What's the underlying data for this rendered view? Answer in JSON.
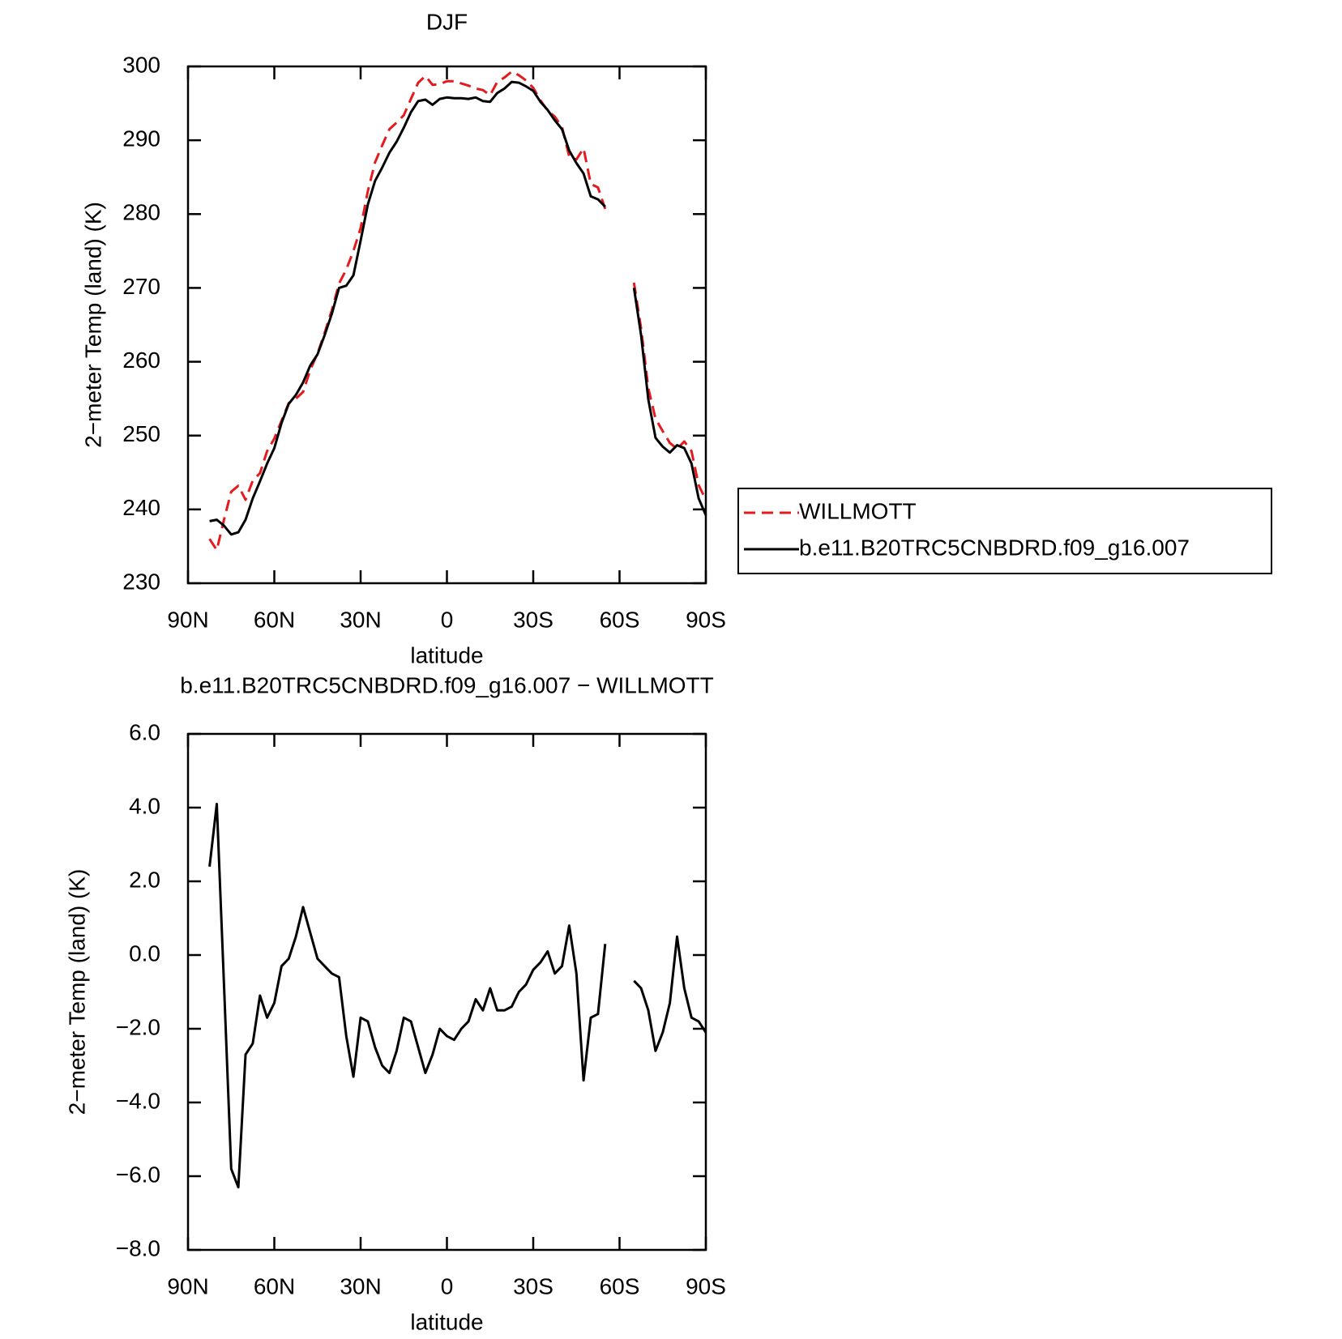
{
  "chart_data": [
    {
      "type": "line",
      "title": "DJF",
      "x_label": "latitude",
      "y_label": "2−meter Temp (land) (K)",
      "x": [
        82.5,
        80,
        77.5,
        75,
        72.5,
        70,
        67.5,
        65,
        62.5,
        60,
        57.5,
        55,
        52.5,
        50,
        47.5,
        45,
        42.5,
        40,
        37.5,
        35,
        32.5,
        30,
        27.5,
        25,
        22.5,
        20,
        17.5,
        15,
        12.5,
        10,
        7.5,
        5,
        2.5,
        0,
        -2.5,
        -5,
        -7.5,
        -10,
        -12.5,
        -15,
        -17.5,
        -20,
        -22.5,
        -25,
        -27.5,
        -30,
        -32.5,
        -35,
        -37.5,
        -40,
        -42.5,
        -45,
        -47.5,
        -50,
        -52.5,
        -55,
        -60,
        -65,
        -67.5,
        -70,
        -72.5,
        -75,
        -77.5,
        -80,
        -82.5,
        -85,
        -87.5,
        -90
      ],
      "series": [
        {
          "name": "WILLMOTT",
          "color": "#e41a1c",
          "dash": "dashed",
          "values": [
            236.0,
            234.5,
            238.6,
            242.4,
            243.2,
            241.3,
            243.9,
            244.9,
            247.9,
            249.6,
            252.0,
            254.4,
            255.0,
            255.9,
            258.9,
            261.1,
            263.9,
            267.0,
            270.6,
            272.5,
            275.0,
            278.1,
            283.1,
            287.0,
            289.3,
            291.5,
            292.4,
            293.4,
            295.6,
            297.8,
            298.7,
            297.5,
            297.6,
            298.0,
            298.0,
            297.7,
            297.4,
            297.0,
            296.8,
            296.1,
            297.9,
            298.5,
            299.3,
            298.8,
            298.1,
            297.1,
            295.4,
            294.0,
            293.2,
            291.8,
            287.8,
            287.4,
            288.9,
            284.1,
            283.6,
            280.7,
            null,
            270.7,
            264.5,
            256.4,
            252.3,
            250.6,
            249.0,
            248.2,
            249.2,
            247.9,
            243.3,
            241.3
          ]
        },
        {
          "name": "b.e11.B20TRC5CNBDRD.f09_g16.007",
          "color": "#000000",
          "dash": "solid",
          "values": [
            238.4,
            238.6,
            237.8,
            236.6,
            236.9,
            238.6,
            241.5,
            243.8,
            246.2,
            248.3,
            251.7,
            254.3,
            255.5,
            257.2,
            259.5,
            261.0,
            263.6,
            266.5,
            270.0,
            270.3,
            271.7,
            276.4,
            281.3,
            284.5,
            286.3,
            288.3,
            289.8,
            291.7,
            293.8,
            295.3,
            295.5,
            294.8,
            295.6,
            295.8,
            295.7,
            295.7,
            295.6,
            295.8,
            295.3,
            295.2,
            296.4,
            297.0,
            297.9,
            297.8,
            297.3,
            296.7,
            295.2,
            294.1,
            292.7,
            291.5,
            288.6,
            286.9,
            285.5,
            282.4,
            282.0,
            281.0,
            null,
            270.0,
            263.6,
            254.9,
            249.7,
            248.5,
            247.7,
            248.7,
            248.3,
            246.2,
            241.5,
            239.2
          ]
        }
      ],
      "xlim": [
        90,
        -90
      ],
      "xticks": [
        {
          "value": 90,
          "label": "90N"
        },
        {
          "value": 60,
          "label": "60N"
        },
        {
          "value": 30,
          "label": "30N"
        },
        0,
        {
          "value": -30,
          "label": "30S"
        },
        {
          "value": -60,
          "label": "60S"
        },
        {
          "value": -90,
          "label": "90S"
        }
      ],
      "ylim": [
        230,
        300
      ],
      "yticks": [
        230,
        240,
        250,
        260,
        270,
        280,
        290,
        300
      ],
      "legend": "right"
    },
    {
      "type": "line",
      "title": "b.e11.B20TRC5CNBDRD.f09_g16.007 − WILLMOTT",
      "x_label": "latitude",
      "y_label": "2−meter Temp (land) (K)",
      "x": [
        82.5,
        80,
        77.5,
        75,
        72.5,
        70,
        67.5,
        65,
        62.5,
        60,
        57.5,
        55,
        52.5,
        50,
        47.5,
        45,
        42.5,
        40,
        37.5,
        35,
        32.5,
        30,
        27.5,
        25,
        22.5,
        20,
        17.5,
        15,
        12.5,
        10,
        7.5,
        5,
        2.5,
        0,
        -2.5,
        -5,
        -7.5,
        -10,
        -12.5,
        -15,
        -17.5,
        -20,
        -22.5,
        -25,
        -27.5,
        -30,
        -32.5,
        -35,
        -37.5,
        -40,
        -42.5,
        -45,
        -47.5,
        -50,
        -52.5,
        -55,
        -60,
        -65,
        -67.5,
        -70,
        -72.5,
        -75,
        -77.5,
        -80,
        -82.5,
        -85,
        -87.5,
        -90
      ],
      "series": [
        {
          "color": "#000000",
          "dash": "solid",
          "values": [
            2.4,
            4.1,
            -0.8,
            -5.8,
            -6.3,
            -2.7,
            -2.4,
            -1.1,
            -1.7,
            -1.3,
            -0.3,
            -0.1,
            0.5,
            1.3,
            0.6,
            -0.1,
            -0.3,
            -0.5,
            -0.6,
            -2.2,
            -3.3,
            -1.7,
            -1.8,
            -2.5,
            -3.0,
            -3.2,
            -2.6,
            -1.7,
            -1.8,
            -2.5,
            -3.2,
            -2.7,
            -2.0,
            -2.2,
            -2.3,
            -2.0,
            -1.8,
            -1.2,
            -1.5,
            -0.9,
            -1.5,
            -1.5,
            -1.4,
            -1.0,
            -0.8,
            -0.4,
            -0.2,
            0.1,
            -0.5,
            -0.3,
            0.8,
            -0.5,
            -3.4,
            -1.7,
            -1.6,
            0.3,
            null,
            -0.7,
            -0.9,
            -1.5,
            -2.6,
            -2.1,
            -1.3,
            0.5,
            -0.9,
            -1.7,
            -1.8,
            -2.1
          ]
        }
      ],
      "xlim": [
        90,
        -90
      ],
      "xticks": [
        {
          "value": 90,
          "label": "90N"
        },
        {
          "value": 60,
          "label": "60N"
        },
        {
          "value": 30,
          "label": "30N"
        },
        0,
        {
          "value": -30,
          "label": "30S"
        },
        {
          "value": -60,
          "label": "60S"
        },
        {
          "value": -90,
          "label": "90S"
        }
      ],
      "ylim": [
        -8,
        6
      ],
      "yticks": [
        {
          "value": -8,
          "label": "−8.0"
        },
        {
          "value": -6,
          "label": "−6.0"
        },
        {
          "value": -4,
          "label": "−4.0"
        },
        {
          "value": -2,
          "label": "−2.0"
        },
        {
          "value": 0,
          "label": "0.0"
        },
        {
          "value": 2,
          "label": "2.0"
        },
        {
          "value": 4,
          "label": "4.0"
        },
        {
          "value": 6,
          "label": "6.0"
        }
      ]
    }
  ]
}
